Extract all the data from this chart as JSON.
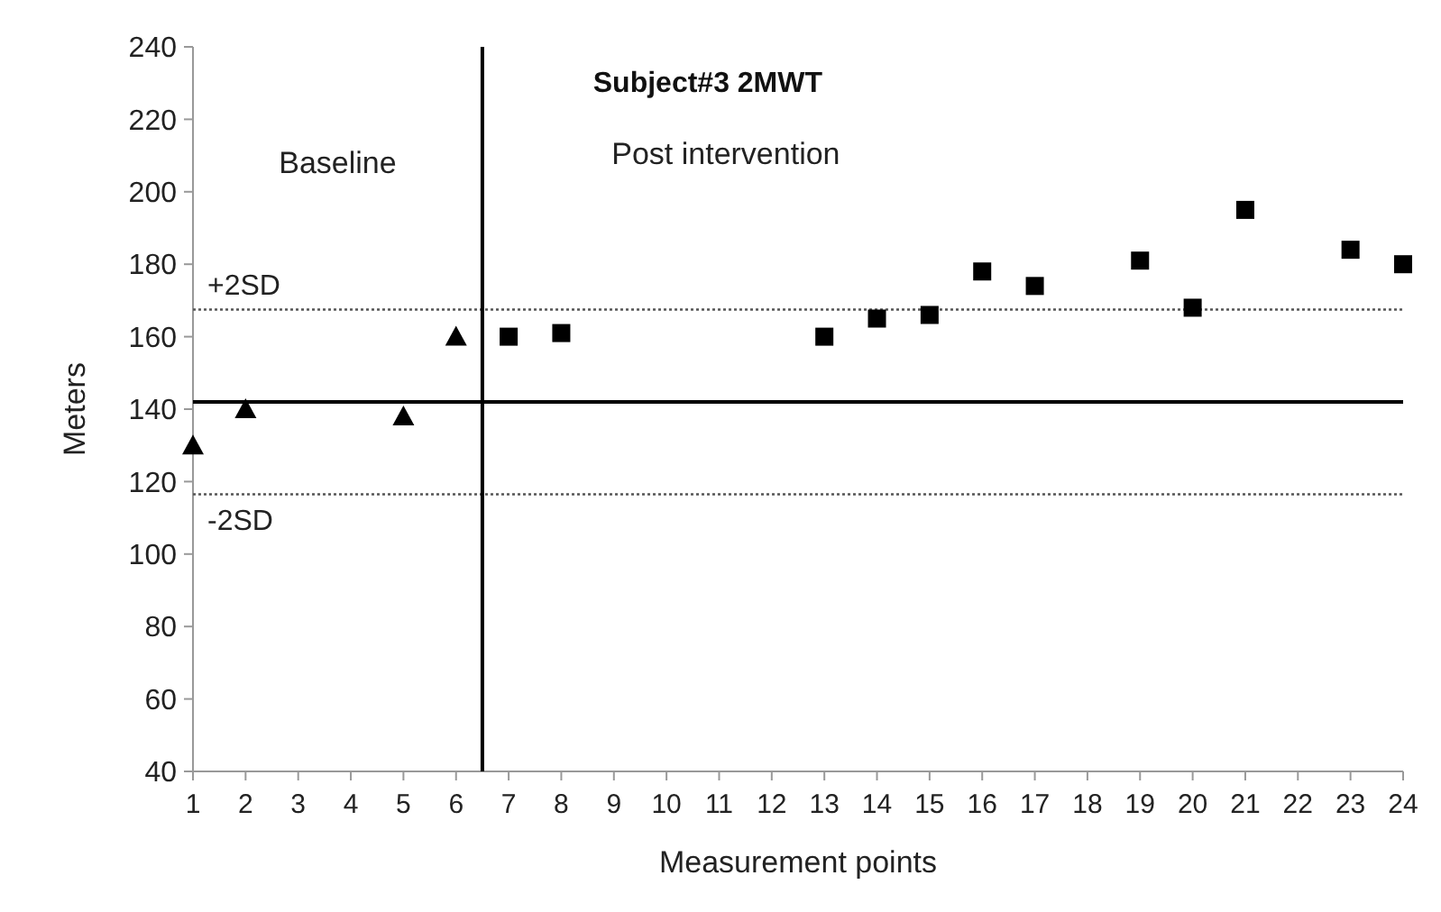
{
  "chart_data": {
    "type": "scatter",
    "title": "Subject#3 2MWT",
    "xlabel": "Measurement points",
    "ylabel": "Meters",
    "annotations": [
      "Baseline",
      "Post intervention"
    ],
    "series": [
      {
        "color": "#000000",
        "marker": "triangle",
        "x": [
          1,
          2,
          5,
          6
        ],
        "values": [
          130,
          140,
          138,
          160
        ]
      },
      {
        "color": "#000000",
        "marker": "square",
        "x": [
          7,
          8,
          13,
          14,
          15,
          16,
          17,
          19,
          20,
          21,
          23,
          24
        ],
        "values": [
          160,
          161,
          160,
          165,
          166,
          178,
          174,
          181,
          168,
          195,
          184,
          180
        ]
      }
    ],
    "xlim": [
      1,
      24
    ],
    "xticks": [
      1,
      2,
      3,
      4,
      5,
      6,
      7,
      8,
      9,
      10,
      11,
      12,
      13,
      14,
      15,
      16,
      17,
      18,
      19,
      20,
      21,
      22,
      23,
      24
    ],
    "ylim": [
      40,
      240
    ],
    "yticks": [
      40,
      60,
      80,
      100,
      120,
      140,
      160,
      180,
      200,
      220,
      240
    ],
    "ref_lines": [
      {
        "axis": "y",
        "value": 142,
        "color": "#000000",
        "line_style": "solid"
      },
      {
        "axis": "y",
        "value": 167.5,
        "label": "+2SD",
        "color": "#555555",
        "line_style": "dotted"
      },
      {
        "axis": "y",
        "value": 116.5,
        "label": "-2SD",
        "color": "#555555",
        "line_style": "dotted"
      },
      {
        "axis": "x",
        "value": 6.5,
        "color": "#000000",
        "line_style": "solid"
      }
    ],
    "grid": false
  }
}
